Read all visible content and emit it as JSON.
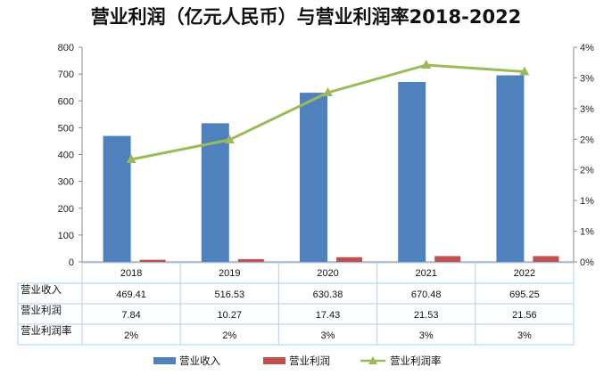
{
  "chart_data": {
    "type": "bar",
    "title": "营业利润（亿元人民币）与营业利润率2018-2022",
    "categories": [
      "2018",
      "2019",
      "2020",
      "2021",
      "2022"
    ],
    "series": [
      {
        "name": "营业收入",
        "type": "bar",
        "axis": "left",
        "color": "#4F81BD",
        "values": [
          469.41,
          516.53,
          630.38,
          670.48,
          695.25
        ],
        "table_values": [
          "469.41",
          "516.53",
          "630.38",
          "670.48",
          "695.25"
        ]
      },
      {
        "name": "营业利润",
        "type": "bar",
        "axis": "left",
        "color": "#C0504D",
        "values": [
          7.84,
          10.27,
          17.43,
          21.53,
          21.56
        ],
        "table_values": [
          "7.84",
          "10.27",
          "17.43",
          "21.53",
          "21.56"
        ]
      },
      {
        "name": "营业利润率",
        "type": "line",
        "axis": "right",
        "color": "#9BBB59",
        "values": [
          1.67,
          1.99,
          2.76,
          3.21,
          3.1
        ],
        "table_values": [
          "2%",
          "2%",
          "3%",
          "3%",
          "3%"
        ]
      }
    ],
    "y_left": {
      "min": 0,
      "max": 800,
      "ticks": [
        "0",
        "100",
        "200",
        "300",
        "400",
        "500",
        "600",
        "700",
        "800"
      ]
    },
    "y_right": {
      "min": 0,
      "max": 3.5,
      "ticks": [
        "0%",
        "1%",
        "1%",
        "2%",
        "2%",
        "3%",
        "3%",
        "4%"
      ]
    },
    "grid": false,
    "legend_position": "bottom",
    "data_table": true
  }
}
